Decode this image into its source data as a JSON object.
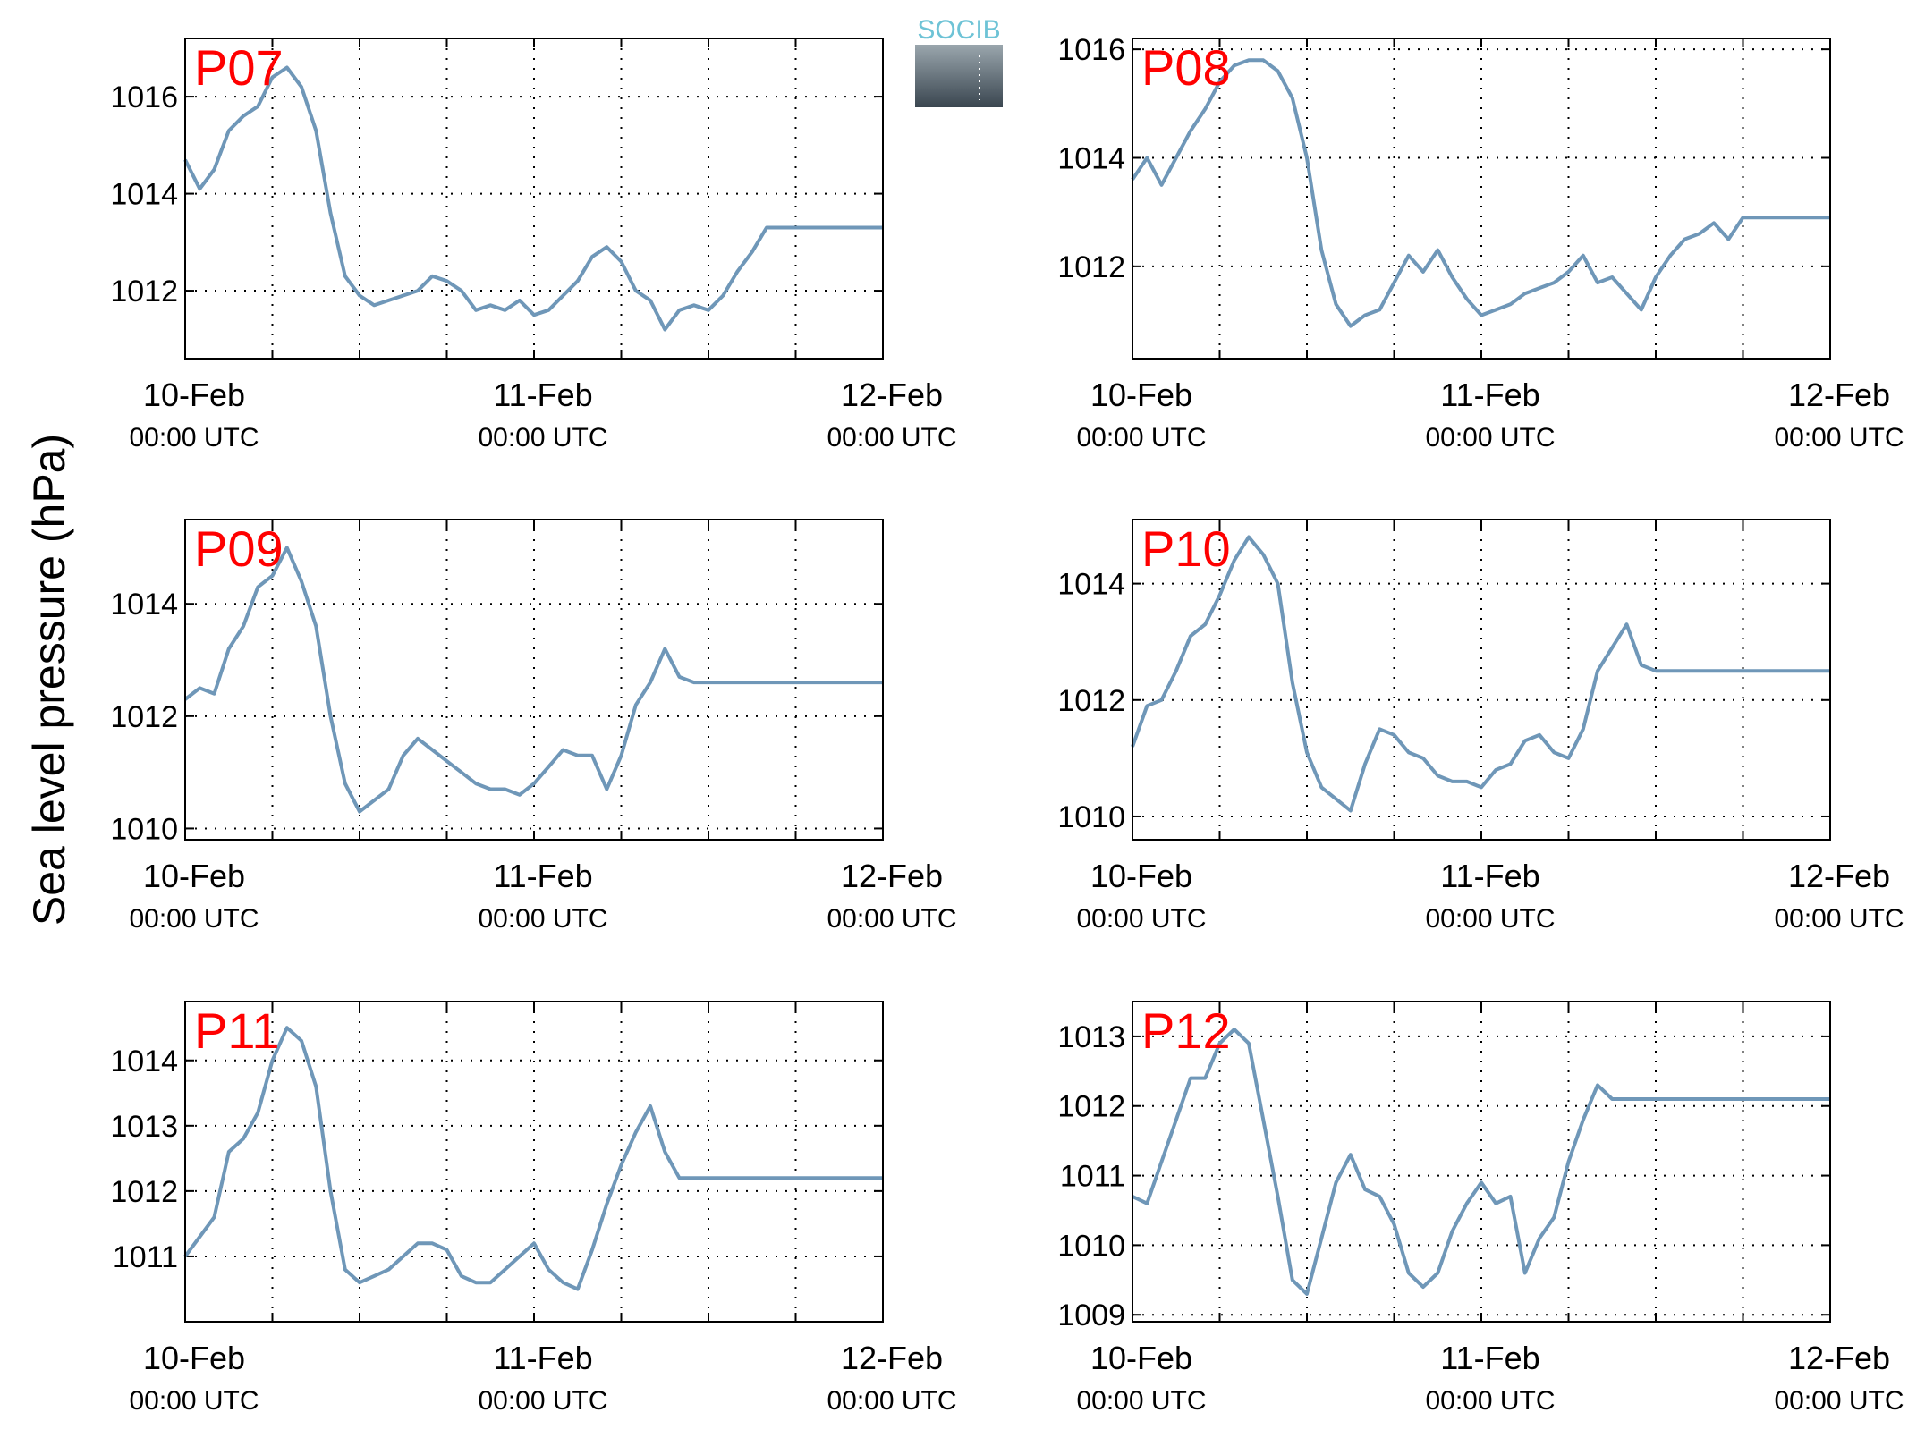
{
  "figure": {
    "ylabel": "Sea level pressure (hPa)",
    "logo_text": "SOCIB"
  },
  "style": {
    "line_color": "#6f97b8",
    "label_color": "#ff0000",
    "logo_top_color": "#9aa6ad",
    "logo_bottom_color": "#3a4650",
    "logo_text_color": "#6ec3d6"
  },
  "chart_data": [
    {
      "type": "line",
      "label": "P07",
      "x_ticks": [
        "10-Feb 00:00 UTC",
        "11-Feb 00:00 UTC",
        "12-Feb 00:00 UTC"
      ],
      "xlim": [
        "10-Feb 00:00",
        "12-Feb 00:00"
      ],
      "ylim": [
        1010.6,
        1017.2
      ],
      "yticks": [
        1012,
        1014,
        1016
      ],
      "grid": true,
      "series": [
        {
          "x": [
            0,
            1,
            2,
            3,
            4,
            5,
            6,
            7,
            8,
            9,
            10,
            11,
            12,
            13,
            14,
            15,
            16,
            17,
            18,
            19,
            20,
            21,
            22,
            23,
            24,
            25,
            26,
            27,
            28,
            29,
            30,
            31,
            32,
            33,
            34,
            35,
            36,
            37,
            38,
            39,
            40,
            41,
            42,
            43,
            44,
            45,
            46,
            47,
            48
          ],
          "values": [
            1014.7,
            1014.1,
            1014.5,
            1015.3,
            1015.6,
            1015.8,
            1016.4,
            1016.6,
            1016.2,
            1015.3,
            1013.6,
            1012.3,
            1011.9,
            1011.7,
            1011.8,
            1011.9,
            1012.0,
            1012.3,
            1012.2,
            1012.0,
            1011.6,
            1011.7,
            1011.6,
            1011.8,
            1011.5,
            1011.6,
            1011.9,
            1012.2,
            1012.7,
            1012.9,
            1012.6,
            1012.0,
            1011.8,
            1011.2,
            1011.6,
            1011.7,
            1011.6,
            1011.9,
            1012.4,
            1012.8,
            1013.3,
            1013.3,
            1013.3,
            1013.3,
            1013.3,
            1013.3,
            1013.3,
            1013.3,
            1013.3
          ]
        }
      ]
    },
    {
      "type": "line",
      "label": "P08",
      "x_ticks": [
        "10-Feb 00:00 UTC",
        "11-Feb 00:00 UTC",
        "12-Feb 00:00 UTC"
      ],
      "xlim": [
        "10-Feb 00:00",
        "12-Feb 00:00"
      ],
      "ylim": [
        1010.3,
        1016.2
      ],
      "yticks": [
        1012,
        1014,
        1016
      ],
      "grid": true,
      "series": [
        {
          "x": [
            0,
            1,
            2,
            3,
            4,
            5,
            6,
            7,
            8,
            9,
            10,
            11,
            12,
            13,
            14,
            15,
            16,
            17,
            18,
            19,
            20,
            21,
            22,
            23,
            24,
            25,
            26,
            27,
            28,
            29,
            30,
            31,
            32,
            33,
            34,
            35,
            36,
            37,
            38,
            39,
            40,
            41,
            42,
            43,
            44,
            45,
            46,
            47,
            48
          ],
          "values": [
            1013.6,
            1014.0,
            1013.5,
            1014.0,
            1014.5,
            1014.9,
            1015.4,
            1015.7,
            1015.8,
            1015.8,
            1015.6,
            1015.1,
            1014.0,
            1012.3,
            1011.3,
            1010.9,
            1011.1,
            1011.2,
            1011.7,
            1012.2,
            1011.9,
            1012.3,
            1011.8,
            1011.4,
            1011.1,
            1011.2,
            1011.3,
            1011.5,
            1011.6,
            1011.7,
            1011.9,
            1012.2,
            1011.7,
            1011.8,
            1011.5,
            1011.2,
            1011.8,
            1012.2,
            1012.5,
            1012.6,
            1012.8,
            1012.5,
            1012.9,
            1012.9,
            1012.9,
            1012.9,
            1012.9,
            1012.9,
            1012.9
          ]
        }
      ]
    },
    {
      "type": "line",
      "label": "P09",
      "x_ticks": [
        "10-Feb 00:00 UTC",
        "11-Feb 00:00 UTC",
        "12-Feb 00:00 UTC"
      ],
      "xlim": [
        "10-Feb 00:00",
        "12-Feb 00:00"
      ],
      "ylim": [
        1009.8,
        1015.5
      ],
      "yticks": [
        1010,
        1012,
        1014
      ],
      "grid": true,
      "series": [
        {
          "x": [
            0,
            1,
            2,
            3,
            4,
            5,
            6,
            7,
            8,
            9,
            10,
            11,
            12,
            13,
            14,
            15,
            16,
            17,
            18,
            19,
            20,
            21,
            22,
            23,
            24,
            25,
            26,
            27,
            28,
            29,
            30,
            31,
            32,
            33,
            34,
            35,
            36,
            37,
            38,
            39,
            40,
            41,
            42,
            43,
            44,
            45,
            46,
            47,
            48
          ],
          "values": [
            1012.3,
            1012.5,
            1012.4,
            1013.2,
            1013.6,
            1014.3,
            1014.5,
            1015.0,
            1014.4,
            1013.6,
            1012.0,
            1010.8,
            1010.3,
            1010.5,
            1010.7,
            1011.3,
            1011.6,
            1011.4,
            1011.2,
            1011.0,
            1010.8,
            1010.7,
            1010.7,
            1010.6,
            1010.8,
            1011.1,
            1011.4,
            1011.3,
            1011.3,
            1010.7,
            1011.3,
            1012.2,
            1012.6,
            1013.2,
            1012.7,
            1012.6,
            1012.6,
            1012.6,
            1012.6,
            1012.6,
            1012.6,
            1012.6,
            1012.6,
            1012.6,
            1012.6,
            1012.6,
            1012.6,
            1012.6,
            1012.6
          ]
        }
      ]
    },
    {
      "type": "line",
      "label": "P10",
      "x_ticks": [
        "10-Feb 00:00 UTC",
        "11-Feb 00:00 UTC",
        "12-Feb 00:00 UTC"
      ],
      "xlim": [
        "10-Feb 00:00",
        "12-Feb 00:00"
      ],
      "ylim": [
        1009.6,
        1015.1
      ],
      "yticks": [
        1010,
        1012,
        1014
      ],
      "grid": true,
      "series": [
        {
          "x": [
            0,
            1,
            2,
            3,
            4,
            5,
            6,
            7,
            8,
            9,
            10,
            11,
            12,
            13,
            14,
            15,
            16,
            17,
            18,
            19,
            20,
            21,
            22,
            23,
            24,
            25,
            26,
            27,
            28,
            29,
            30,
            31,
            32,
            33,
            34,
            35,
            36,
            37,
            38,
            39,
            40,
            41,
            42,
            43,
            44,
            45,
            46,
            47,
            48
          ],
          "values": [
            1011.2,
            1011.9,
            1012.0,
            1012.5,
            1013.1,
            1013.3,
            1013.8,
            1014.4,
            1014.8,
            1014.5,
            1014.0,
            1012.3,
            1011.1,
            1010.5,
            1010.3,
            1010.1,
            1010.9,
            1011.5,
            1011.4,
            1011.1,
            1011.0,
            1010.7,
            1010.6,
            1010.6,
            1010.5,
            1010.8,
            1010.9,
            1011.3,
            1011.4,
            1011.1,
            1011.0,
            1011.5,
            1012.5,
            1012.9,
            1013.3,
            1012.6,
            1012.5,
            1012.5,
            1012.5,
            1012.5,
            1012.5,
            1012.5,
            1012.5,
            1012.5,
            1012.5,
            1012.5,
            1012.5,
            1012.5,
            1012.5
          ]
        }
      ]
    },
    {
      "type": "line",
      "label": "P11",
      "x_ticks": [
        "10-Feb 00:00 UTC",
        "11-Feb 00:00 UTC",
        "12-Feb 00:00 UTC"
      ],
      "xlim": [
        "10-Feb 00:00",
        "12-Feb 00:00"
      ],
      "ylim": [
        1010.0,
        1014.9
      ],
      "yticks": [
        1011,
        1012,
        1013,
        1014
      ],
      "grid": true,
      "series": [
        {
          "x": [
            0,
            1,
            2,
            3,
            4,
            5,
            6,
            7,
            8,
            9,
            10,
            11,
            12,
            13,
            14,
            15,
            16,
            17,
            18,
            19,
            20,
            21,
            22,
            23,
            24,
            25,
            26,
            27,
            28,
            29,
            30,
            31,
            32,
            33,
            34,
            35,
            36,
            37,
            38,
            39,
            40,
            41,
            42,
            43,
            44,
            45,
            46,
            47,
            48
          ],
          "values": [
            1011.0,
            1011.3,
            1011.6,
            1012.6,
            1012.8,
            1013.2,
            1014.0,
            1014.5,
            1014.3,
            1013.6,
            1012.0,
            1010.8,
            1010.6,
            1010.7,
            1010.8,
            1011.0,
            1011.2,
            1011.2,
            1011.1,
            1010.7,
            1010.6,
            1010.6,
            1010.8,
            1011.0,
            1011.2,
            1010.8,
            1010.6,
            1010.5,
            1011.1,
            1011.8,
            1012.4,
            1012.9,
            1013.3,
            1012.6,
            1012.2,
            1012.2,
            1012.2,
            1012.2,
            1012.2,
            1012.2,
            1012.2,
            1012.2,
            1012.2,
            1012.2,
            1012.2,
            1012.2,
            1012.2,
            1012.2,
            1012.2
          ]
        }
      ]
    },
    {
      "type": "line",
      "label": "P12",
      "x_ticks": [
        "10-Feb 00:00 UTC",
        "11-Feb 00:00 UTC",
        "12-Feb 00:00 UTC"
      ],
      "xlim": [
        "10-Feb 00:00",
        "12-Feb 00:00"
      ],
      "ylim": [
        1008.9,
        1013.5
      ],
      "yticks": [
        1009,
        1010,
        1011,
        1012,
        1013
      ],
      "grid": true,
      "series": [
        {
          "x": [
            0,
            1,
            2,
            3,
            4,
            5,
            6,
            7,
            8,
            9,
            10,
            11,
            12,
            13,
            14,
            15,
            16,
            17,
            18,
            19,
            20,
            21,
            22,
            23,
            24,
            25,
            26,
            27,
            28,
            29,
            30,
            31,
            32,
            33,
            34,
            35,
            36,
            37,
            38,
            39,
            40,
            41,
            42,
            43,
            44,
            45,
            46,
            47,
            48
          ],
          "values": [
            1010.7,
            1010.6,
            1011.2,
            1011.8,
            1012.4,
            1012.4,
            1012.9,
            1013.1,
            1012.9,
            1011.8,
            1010.7,
            1009.5,
            1009.3,
            1010.1,
            1010.9,
            1011.3,
            1010.8,
            1010.7,
            1010.3,
            1009.6,
            1009.4,
            1009.6,
            1010.2,
            1010.6,
            1010.9,
            1010.6,
            1010.7,
            1009.6,
            1010.1,
            1010.4,
            1011.2,
            1011.8,
            1012.3,
            1012.1,
            1012.1,
            1012.1,
            1012.1,
            1012.1,
            1012.1,
            1012.1,
            1012.1,
            1012.1,
            1012.1,
            1012.1,
            1012.1,
            1012.1,
            1012.1,
            1012.1,
            1012.1
          ]
        }
      ]
    }
  ]
}
